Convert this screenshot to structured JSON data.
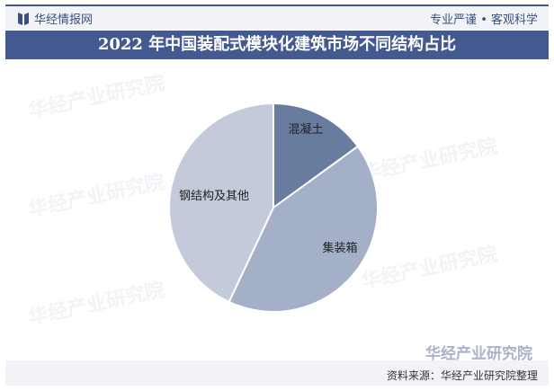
{
  "header": {
    "brand": "华经情报网",
    "slogan": "专业严谨 • 客观科学"
  },
  "footer": {
    "logo_text": "华经产业研究院",
    "source": "资料来源：华经产业研究院整理"
  },
  "watermark": "华经产业研究院",
  "colors": {
    "title_bg": "#44598f",
    "accent": "#3a4f7e"
  },
  "chart_data": {
    "type": "pie",
    "title": "2022 年中国装配式模块化建筑市场不同结构占比",
    "categories": [
      "混凝土",
      "集装箱",
      "钢结构及其他"
    ],
    "values": [
      15,
      42,
      43
    ],
    "colors": [
      "#687ca0",
      "#a4b0c8",
      "#c3cad9"
    ],
    "start_angle": "12 o'clock, clockwise",
    "legend": "none (labels inside slices)"
  }
}
